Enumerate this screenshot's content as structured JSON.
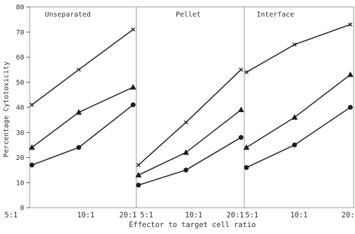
{
  "chart_data": {
    "type": "line",
    "xlabel": "Effector to target cell ratio",
    "ylabel": "Percentage Cytotoxicity",
    "ylim": [
      0,
      80
    ],
    "yticks": [
      0,
      10,
      20,
      30,
      40,
      50,
      60,
      70,
      80
    ],
    "categories": [
      "5:1",
      "10:1",
      "20:1"
    ],
    "x_tick_labels": [
      "5:1",
      "10:1",
      "20:1",
      "5:1",
      "10:1",
      "20:1",
      "5:1",
      "10:1",
      "20:"
    ],
    "panels": [
      {
        "title": "Unseparated",
        "series": [
          {
            "marker": "cross",
            "values": [
              41,
              55,
              71
            ]
          },
          {
            "marker": "triangle",
            "values": [
              24,
              38,
              48
            ]
          },
          {
            "marker": "circle",
            "values": [
              17,
              24,
              41
            ]
          }
        ]
      },
      {
        "title": "Pellet",
        "series": [
          {
            "marker": "cross",
            "values": [
              17,
              34,
              55
            ]
          },
          {
            "marker": "triangle",
            "values": [
              13,
              22,
              39
            ]
          },
          {
            "marker": "circle",
            "values": [
              9,
              15,
              28
            ]
          }
        ]
      },
      {
        "title": "Interface",
        "series": [
          {
            "marker": "cross",
            "values": [
              54,
              65,
              73
            ]
          },
          {
            "marker": "triangle",
            "values": [
              24,
              36,
              53
            ]
          },
          {
            "marker": "circle",
            "values": [
              16,
              25,
              40
            ]
          }
        ]
      }
    ]
  }
}
